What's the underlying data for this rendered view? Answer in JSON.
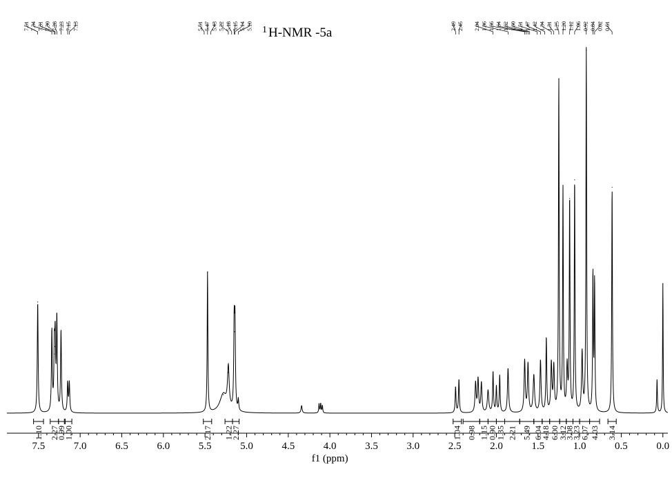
{
  "chart_data": {
    "type": "line",
    "title_prefix": "1",
    "title": "H-NMR -5a",
    "xlabel": "f1 (ppm)",
    "xlim": [
      7.88,
      -0.06
    ],
    "reversed_axis": true,
    "xticks": [
      "7.5",
      "7.0",
      "6.5",
      "6.0",
      "5.5",
      "5.0",
      "4.5",
      "4.0",
      "3.5",
      "3.0",
      "2.5",
      "2.0",
      "1.5",
      "1.0",
      "0.5",
      "0.0"
    ],
    "peak_labels": {
      "group1": [
        "7.51",
        "7.34",
        "7.31",
        "7.30",
        "7.28",
        "7.23",
        "7.15",
        "7.13"
      ],
      "group2": [
        "5.51",
        "5.47",
        "5.43",
        "5.22",
        "5.18",
        "5.15",
        "5.14",
        "5.10"
      ],
      "group3": [
        "2.49",
        "2.45"
      ],
      "group4": [
        "2.04",
        "1.86",
        "1.66",
        "1.64",
        "1.62",
        "1.60",
        "1.51",
        "1.47",
        "1.42",
        "1.34",
        "1.31",
        "1.25",
        "1.20",
        "1.12",
        "1.06",
        "0.92",
        "0.84",
        "0.82",
        "0.61"
      ]
    },
    "peaks": [
      {
        "x": 7.51,
        "h": 0.3,
        "w": 0.006
      },
      {
        "x": 7.34,
        "h": 0.22,
        "w": 0.006
      },
      {
        "x": 7.31,
        "h": 0.16,
        "w": 0.006
      },
      {
        "x": 7.3,
        "h": 0.18,
        "w": 0.006
      },
      {
        "x": 7.28,
        "h": 0.25,
        "w": 0.006
      },
      {
        "x": 7.23,
        "h": 0.22,
        "w": 0.006
      },
      {
        "x": 7.15,
        "h": 0.08,
        "w": 0.006
      },
      {
        "x": 7.13,
        "h": 0.08,
        "w": 0.006
      },
      {
        "x": 5.47,
        "h": 0.38,
        "w": 0.005
      },
      {
        "x": 5.28,
        "h": 0.05,
        "w": 0.05
      },
      {
        "x": 5.22,
        "h": 0.11,
        "w": 0.012
      },
      {
        "x": 5.15,
        "h": 0.22,
        "w": 0.006
      },
      {
        "x": 5.14,
        "h": 0.22,
        "w": 0.006
      },
      {
        "x": 5.1,
        "h": 0.03,
        "w": 0.006
      },
      {
        "x": 4.34,
        "h": 0.02,
        "w": 0.008
      },
      {
        "x": 4.13,
        "h": 0.025,
        "w": 0.005
      },
      {
        "x": 4.11,
        "h": 0.025,
        "w": 0.005
      },
      {
        "x": 4.09,
        "h": 0.02,
        "w": 0.005
      },
      {
        "x": 2.49,
        "h": 0.07,
        "w": 0.006
      },
      {
        "x": 2.45,
        "h": 0.09,
        "w": 0.006
      },
      {
        "x": 2.25,
        "h": 0.08,
        "w": 0.008
      },
      {
        "x": 2.22,
        "h": 0.09,
        "w": 0.008
      },
      {
        "x": 2.18,
        "h": 0.08,
        "w": 0.008
      },
      {
        "x": 2.1,
        "h": 0.06,
        "w": 0.01
      },
      {
        "x": 2.04,
        "h": 0.11,
        "w": 0.006
      },
      {
        "x": 2.0,
        "h": 0.07,
        "w": 0.006
      },
      {
        "x": 1.96,
        "h": 0.1,
        "w": 0.006
      },
      {
        "x": 1.86,
        "h": 0.12,
        "w": 0.008
      },
      {
        "x": 1.66,
        "h": 0.14,
        "w": 0.008
      },
      {
        "x": 1.62,
        "h": 0.13,
        "w": 0.008
      },
      {
        "x": 1.55,
        "h": 0.1,
        "w": 0.01
      },
      {
        "x": 1.47,
        "h": 0.14,
        "w": 0.008
      },
      {
        "x": 1.4,
        "h": 0.2,
        "w": 0.006
      },
      {
        "x": 1.34,
        "h": 0.13,
        "w": 0.008
      },
      {
        "x": 1.31,
        "h": 0.12,
        "w": 0.008
      },
      {
        "x": 1.25,
        "h": 0.9,
        "w": 0.005
      },
      {
        "x": 1.2,
        "h": 0.6,
        "w": 0.005
      },
      {
        "x": 1.15,
        "h": 0.12,
        "w": 0.008
      },
      {
        "x": 1.12,
        "h": 0.58,
        "w": 0.005
      },
      {
        "x": 1.06,
        "h": 0.63,
        "w": 0.005
      },
      {
        "x": 0.97,
        "h": 0.16,
        "w": 0.008
      },
      {
        "x": 0.92,
        "h": 0.98,
        "w": 0.005
      },
      {
        "x": 0.84,
        "h": 0.37,
        "w": 0.005
      },
      {
        "x": 0.82,
        "h": 0.35,
        "w": 0.005
      },
      {
        "x": 0.61,
        "h": 0.61,
        "w": 0.005
      },
      {
        "x": 0.07,
        "h": 0.09,
        "w": 0.005
      },
      {
        "x": 0.0,
        "h": 0.35,
        "w": 0.004
      }
    ],
    "integrals": [
      {
        "x1": 7.56,
        "x2": 7.44,
        "label": "1.10"
      },
      {
        "x1": 7.36,
        "x2": 7.26,
        "label": "2.27"
      },
      {
        "x1": 7.26,
        "x2": 7.19,
        "label": "0.99"
      },
      {
        "x1": 7.18,
        "x2": 7.1,
        "label": "1.00"
      },
      {
        "x1": 5.52,
        "x2": 5.42,
        "label": "2.17"
      },
      {
        "x1": 5.26,
        "x2": 5.17,
        "label": "1.22"
      },
      {
        "x1": 5.17,
        "x2": 5.09,
        "label": "2.27"
      },
      {
        "x1": 2.52,
        "x2": 2.42,
        "label": "1.04"
      },
      {
        "x1": 2.4,
        "x2": 2.2,
        "label": "0.98"
      },
      {
        "x1": 2.2,
        "x2": 2.1,
        "label": "1.15"
      },
      {
        "x1": 2.1,
        "x2": 2.0,
        "label": "0.90"
      },
      {
        "x1": 2.0,
        "x2": 1.9,
        "label": "1.35"
      },
      {
        "x1": 1.9,
        "x2": 1.72,
        "label": "2.21"
      },
      {
        "x1": 1.72,
        "x2": 1.55,
        "label": "5.49"
      },
      {
        "x1": 1.55,
        "x2": 1.45,
        "label": "6.04"
      },
      {
        "x1": 1.45,
        "x2": 1.36,
        "label": "4.18"
      },
      {
        "x1": 1.36,
        "x2": 1.24,
        "label": "6.00"
      },
      {
        "x1": 1.24,
        "x2": 1.16,
        "label": "3.12"
      },
      {
        "x1": 1.16,
        "x2": 1.08,
        "label": "3.08"
      },
      {
        "x1": 1.08,
        "x2": 1.0,
        "label": "3.23"
      },
      {
        "x1": 1.0,
        "x2": 0.88,
        "label": "6.07"
      },
      {
        "x1": 0.88,
        "x2": 0.76,
        "label": "4.03"
      },
      {
        "x1": 0.66,
        "x2": 0.56,
        "label": "3.14"
      }
    ]
  }
}
